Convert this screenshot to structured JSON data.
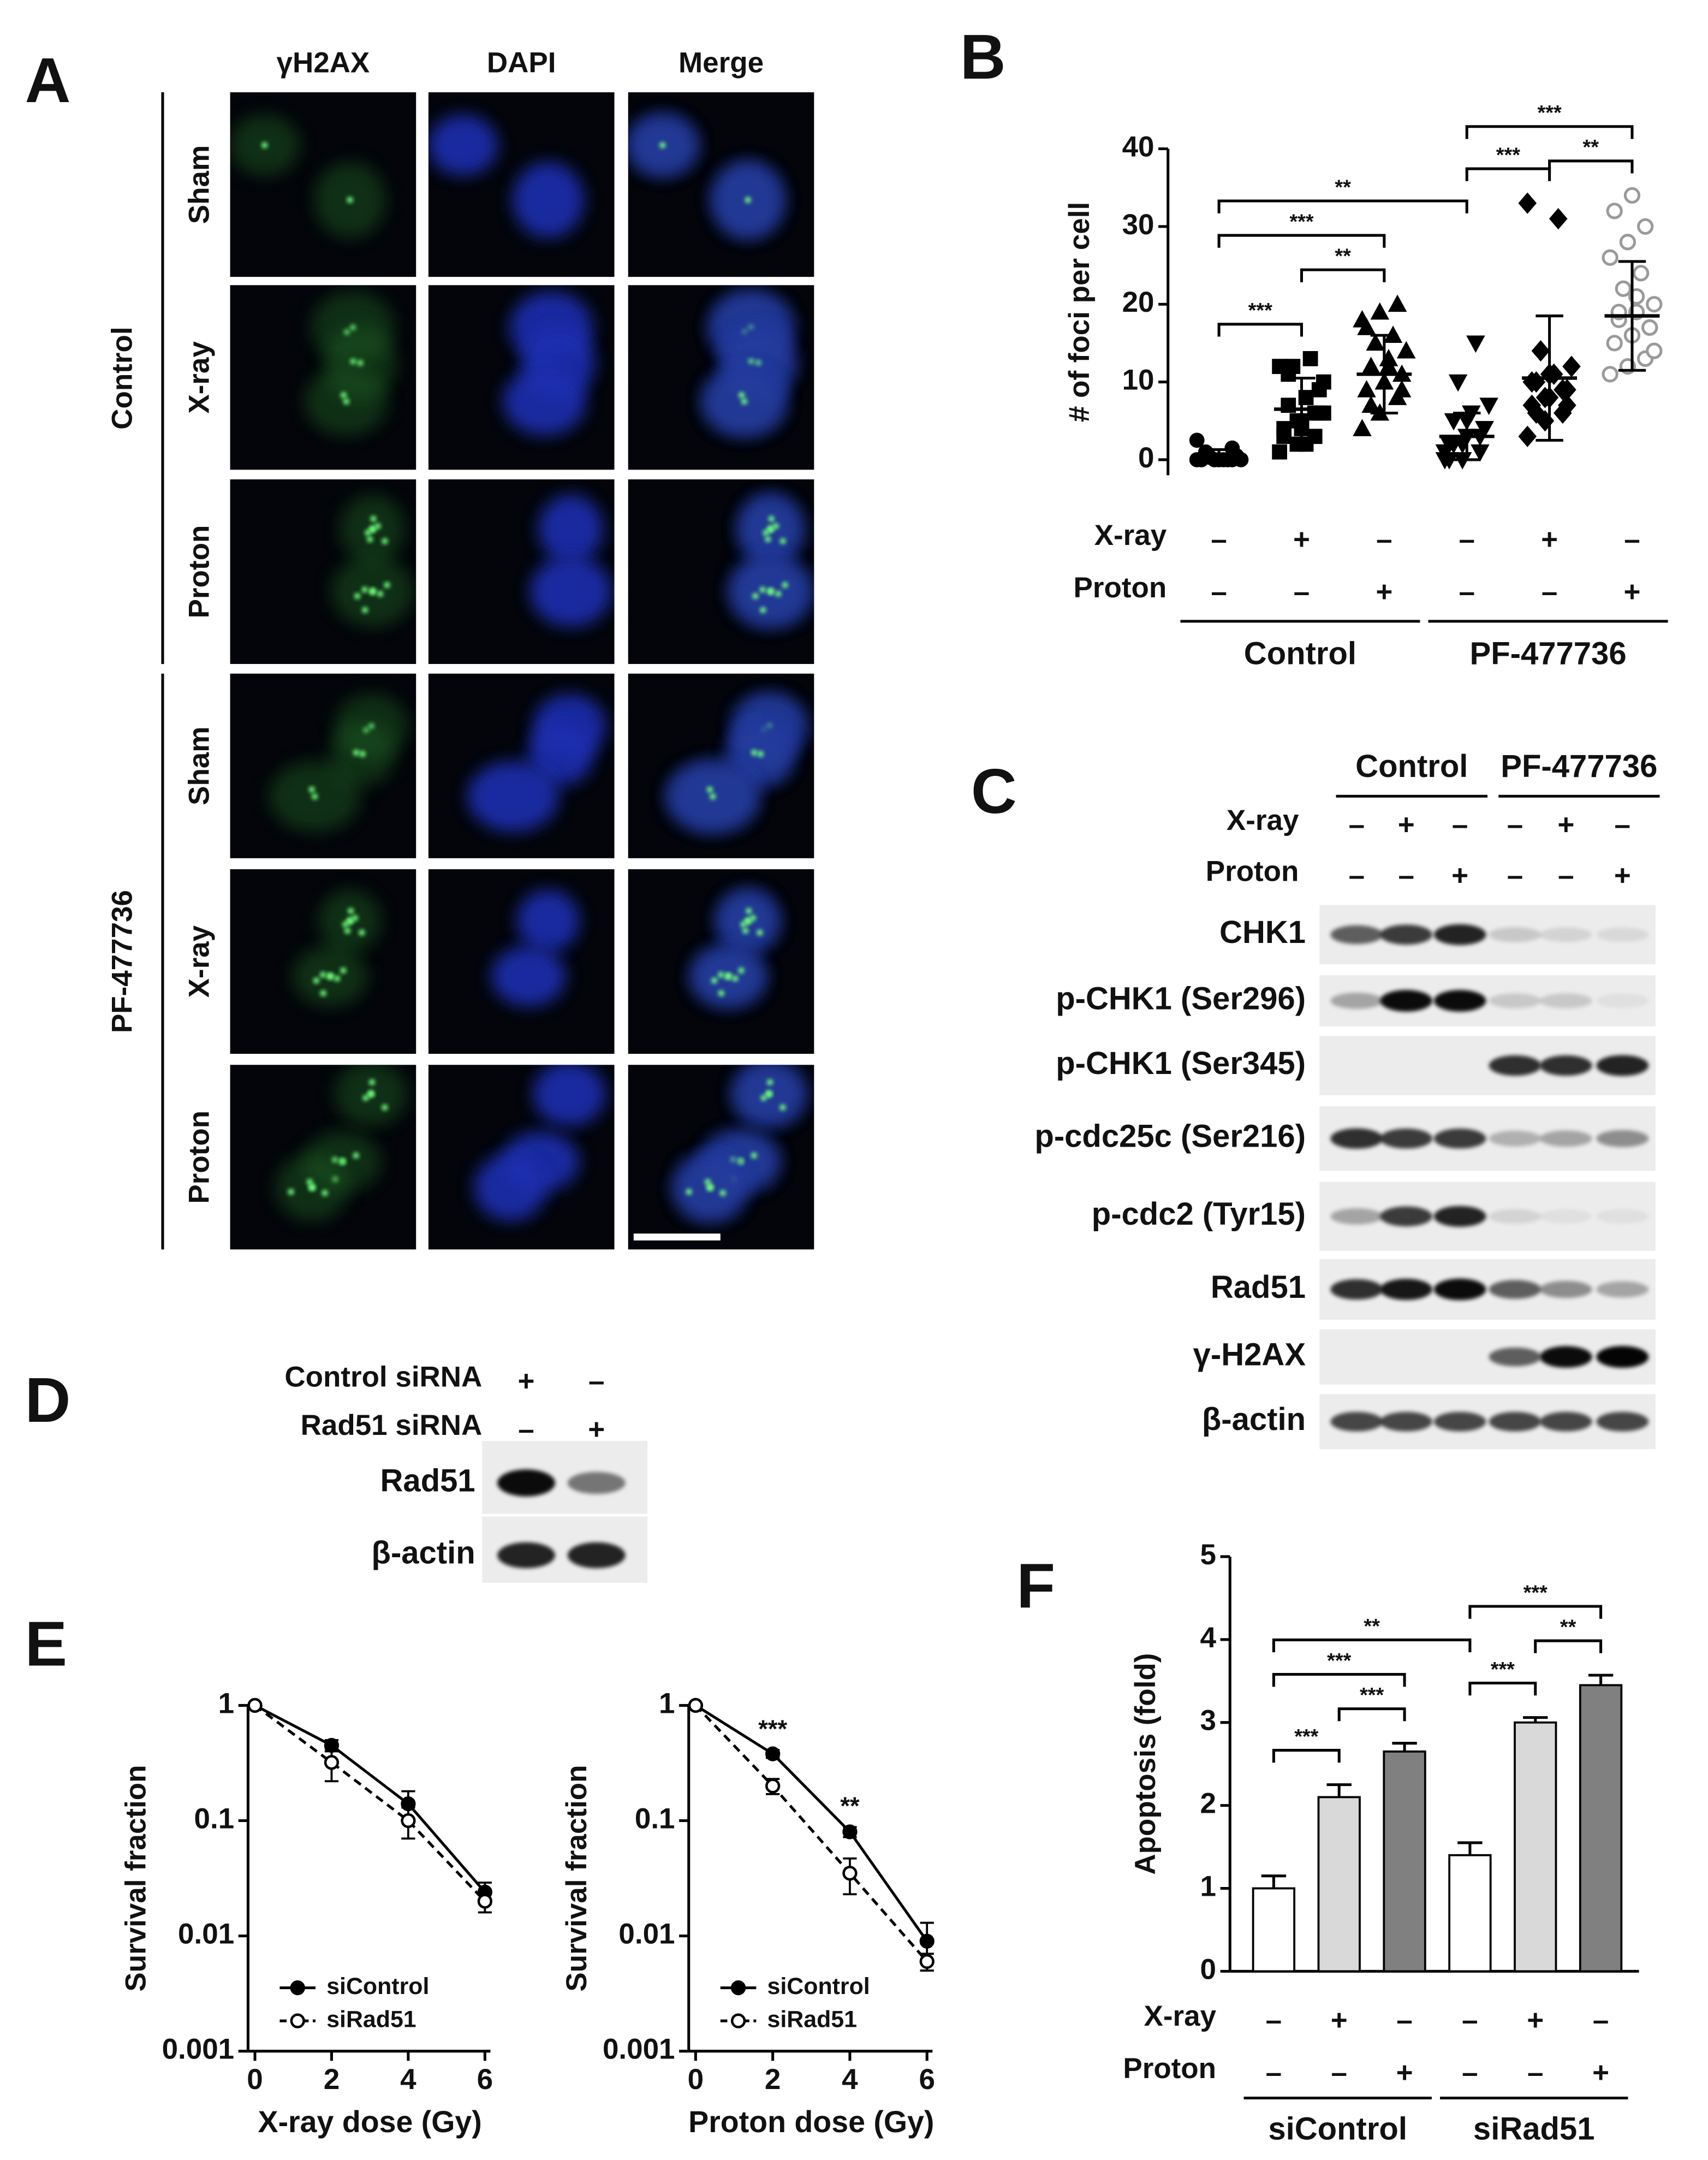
{
  "panel_labels": [
    "A",
    "B",
    "C",
    "D",
    "E",
    "F"
  ],
  "panel_a": {
    "columns": [
      "γH2AX",
      "DAPI",
      "Merge"
    ],
    "groups": [
      {
        "label": "Control",
        "rows": [
          "Sham",
          "X-ray",
          "Proton"
        ]
      },
      {
        "label": "PF-477736",
        "rows": [
          "Sham",
          "X-ray",
          "Proton"
        ]
      }
    ]
  },
  "chart_data": [
    {
      "type": "dot",
      "y_label": "# of foci per cell",
      "ylim": [
        -2,
        40
      ],
      "yticks": [
        0,
        10,
        20,
        30,
        40
      ],
      "conditions": [
        {
          "label": "X-ray",
          "signs": [
            "–",
            "+",
            "–",
            "–",
            "+",
            "–"
          ]
        },
        {
          "label": "Proton",
          "signs": [
            "–",
            "–",
            "+",
            "–",
            "–",
            "+"
          ]
        }
      ],
      "groups": [
        "Control",
        "PF-477736"
      ],
      "series": [
        {
          "marker": "circle",
          "color": "#000000",
          "filled": true,
          "mean": 0.5,
          "sd": 0.8,
          "values": [
            0,
            0,
            0,
            0,
            0,
            0.5,
            1,
            0,
            0,
            0.3,
            0,
            2.5,
            0,
            1.5,
            0
          ]
        },
        {
          "marker": "square",
          "color": "#000000",
          "filled": true,
          "mean": 6.5,
          "sd": 4,
          "values": [
            1,
            2,
            3,
            4,
            5,
            6,
            7,
            8,
            10,
            12,
            13,
            12,
            5,
            6,
            3,
            4,
            9,
            11,
            2,
            6
          ]
        },
        {
          "marker": "triangle-up",
          "color": "#000000",
          "filled": true,
          "mean": 11,
          "sd": 5,
          "values": [
            4,
            6,
            8,
            9,
            10,
            11,
            12,
            13,
            14,
            15,
            16,
            18,
            19,
            20,
            17,
            10,
            9,
            7,
            12,
            14
          ]
        },
        {
          "marker": "triangle-down",
          "color": "#000000",
          "filled": true,
          "mean": 3,
          "sd": 3,
          "values": [
            0,
            0,
            1,
            2,
            3,
            4,
            5,
            6,
            7,
            10,
            15,
            1,
            2,
            3,
            0,
            5,
            4,
            2
          ]
        },
        {
          "marker": "diamond",
          "color": "#000000",
          "filled": true,
          "mean": 10.5,
          "sd": 8,
          "values": [
            3,
            5,
            6,
            7,
            8,
            9,
            10,
            11,
            12,
            14,
            31,
            33,
            8,
            9,
            10,
            11,
            7,
            6
          ]
        },
        {
          "marker": "circle",
          "color": "#9a9a9a",
          "filled": false,
          "mean": 18.5,
          "sd": 7,
          "values": [
            11,
            12,
            13,
            15,
            16,
            17,
            18,
            19,
            20,
            22,
            24,
            26,
            28,
            30,
            32,
            34,
            17,
            19,
            21,
            14
          ]
        }
      ],
      "significance": [
        {
          "text": "***",
          "between": [
            0,
            1
          ]
        },
        {
          "text": "**",
          "between": [
            1,
            2
          ]
        },
        {
          "text": "***",
          "between": [
            0,
            2
          ]
        },
        {
          "text": "**",
          "between": [
            0,
            3
          ]
        },
        {
          "text": "***",
          "between": [
            3,
            4
          ]
        },
        {
          "text": "**",
          "between": [
            4,
            5
          ]
        },
        {
          "text": "***",
          "between": [
            3,
            5
          ]
        }
      ]
    },
    {
      "type": "line",
      "x_label": "X-ray dose (Gy)",
      "y_label": "Survival fraction",
      "log_y": true,
      "x": [
        0,
        2,
        4,
        6
      ],
      "xlim": [
        0,
        6
      ],
      "xticks": [
        0,
        2,
        4,
        6
      ],
      "ylim": [
        0.001,
        1
      ],
      "yticks": [
        1,
        0.1,
        0.01,
        0.001
      ],
      "legend": "lower left",
      "series": [
        {
          "name": "siControl",
          "color": "#000000",
          "filled": true,
          "dashed": false,
          "values": [
            1,
            0.45,
            0.14,
            0.024
          ],
          "errors": [
            0,
            0.05,
            0.04,
            0.005
          ]
        },
        {
          "name": "siRad51",
          "color": "#000000",
          "filled": false,
          "dashed": true,
          "values": [
            1,
            0.32,
            0.1,
            0.02
          ],
          "errors": [
            0,
            0.1,
            0.03,
            0.004
          ]
        }
      ]
    },
    {
      "type": "line",
      "x_label": "Proton dose (Gy)",
      "y_label": "Survival fraction",
      "log_y": true,
      "x": [
        0,
        2,
        4,
        6
      ],
      "xlim": [
        0,
        6
      ],
      "xticks": [
        0,
        2,
        4,
        6
      ],
      "ylim": [
        0.001,
        1
      ],
      "yticks": [
        1,
        0.1,
        0.01,
        0.001
      ],
      "legend": "lower left",
      "series": [
        {
          "name": "siControl",
          "color": "#000000",
          "filled": true,
          "dashed": false,
          "values": [
            1,
            0.38,
            0.08,
            0.009
          ],
          "errors": [
            0,
            0.03,
            0.008,
            0.004
          ]
        },
        {
          "name": "siRad51",
          "color": "#000000",
          "filled": false,
          "dashed": true,
          "values": [
            1,
            0.2,
            0.035,
            0.006
          ],
          "errors": [
            0,
            0.03,
            0.012,
            0.001
          ]
        }
      ],
      "annotations": [
        {
          "text": "***",
          "x": 2
        },
        {
          "text": "**",
          "x": 4
        }
      ]
    },
    {
      "type": "bar",
      "y_label": "Apoptosis (fold)",
      "ylim": [
        0,
        5
      ],
      "yticks": [
        0,
        1,
        2,
        3,
        4,
        5
      ],
      "values": [
        1.0,
        2.1,
        2.65,
        1.4,
        3.0,
        3.45
      ],
      "errors": [
        0.15,
        0.15,
        0.1,
        0.15,
        0.06,
        0.12
      ],
      "colors": [
        "#ffffff",
        "#d9d9d9",
        "#808080",
        "#ffffff",
        "#d9d9d9",
        "#808080"
      ],
      "conditions": [
        {
          "label": "X-ray",
          "signs": [
            "–",
            "+",
            "–",
            "–",
            "+",
            "–"
          ]
        },
        {
          "label": "Proton",
          "signs": [
            "–",
            "–",
            "+",
            "–",
            "–",
            "+"
          ]
        }
      ],
      "groups": [
        "siControl",
        "siRad51"
      ],
      "significance": [
        {
          "text": "***",
          "between": [
            0,
            1
          ]
        },
        {
          "text": "***",
          "between": [
            1,
            2
          ]
        },
        {
          "text": "***",
          "between": [
            0,
            2
          ]
        },
        {
          "text": "**",
          "between": [
            0,
            3
          ]
        },
        {
          "text": "***",
          "between": [
            3,
            4
          ]
        },
        {
          "text": "**",
          "between": [
            4,
            5
          ]
        },
        {
          "text": "***",
          "between": [
            3,
            5
          ]
        }
      ]
    }
  ],
  "panel_c": {
    "groups": [
      "Control",
      "PF-477736"
    ],
    "conditions": [
      {
        "label": "X-ray",
        "signs": [
          "–",
          "+",
          "–",
          "–",
          "+",
          "–"
        ]
      },
      {
        "label": "Proton",
        "signs": [
          "–",
          "–",
          "+",
          "–",
          "–",
          "+"
        ]
      }
    ],
    "bands": [
      "CHK1",
      "p-CHK1 (Ser296)",
      "p-CHK1 (Ser345)",
      "p-cdc25c (Ser216)",
      "p-cdc2 (Tyr15)",
      "Rad51",
      "γ-H2AX",
      "β-actin"
    ]
  },
  "panel_d": {
    "conditions": [
      {
        "label": "Control siRNA",
        "signs": [
          "+",
          "–"
        ]
      },
      {
        "label": "Rad51 siRNA",
        "signs": [
          "–",
          "+"
        ]
      }
    ],
    "bands": [
      "Rad51",
      "β-actin"
    ]
  }
}
